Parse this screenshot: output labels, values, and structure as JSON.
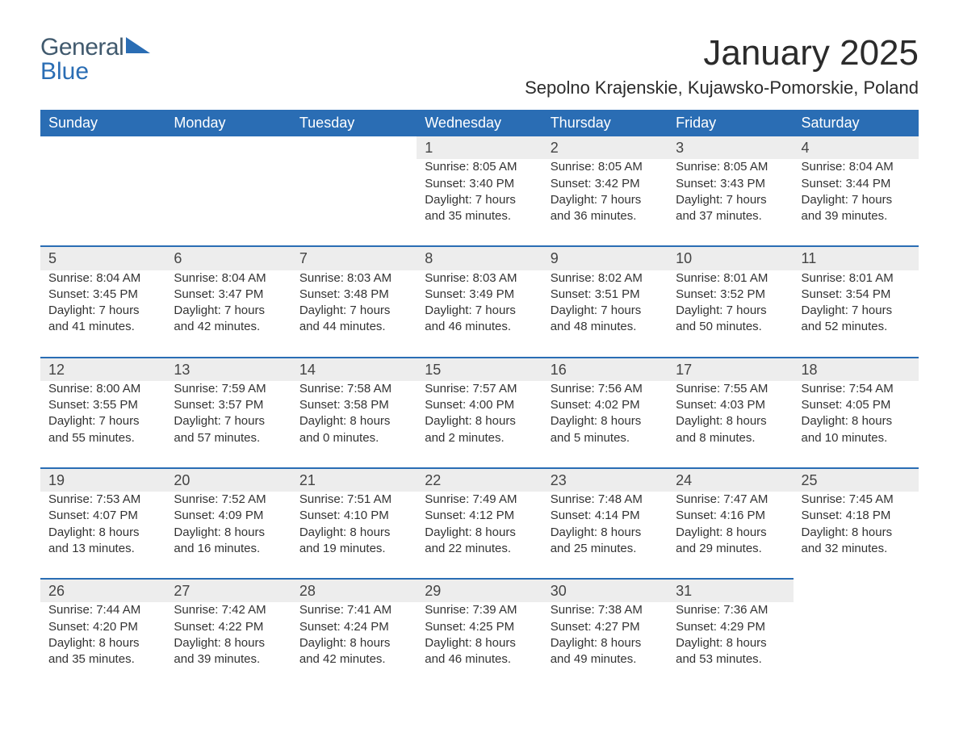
{
  "brand": {
    "word1": "General",
    "word2": "Blue"
  },
  "title": "January 2025",
  "subtitle": "Sepolno Krajenskie, Kujawsko-Pomorskie, Poland",
  "colors": {
    "header_bg": "#2a6db4",
    "header_text": "#ffffff",
    "daynum_bg": "#ededed",
    "row_divider": "#2a6db4",
    "body_text": "#333333",
    "page_bg": "#ffffff"
  },
  "fonts": {
    "title_size_pt": 33,
    "subtitle_size_pt": 17,
    "header_size_pt": 14,
    "cell_size_pt": 11
  },
  "weekdays": [
    "Sunday",
    "Monday",
    "Tuesday",
    "Wednesday",
    "Thursday",
    "Friday",
    "Saturday"
  ],
  "weeks": [
    [
      null,
      null,
      null,
      {
        "n": "1",
        "sr": "Sunrise: 8:05 AM",
        "ss": "Sunset: 3:40 PM",
        "d1": "Daylight: 7 hours",
        "d2": "and 35 minutes."
      },
      {
        "n": "2",
        "sr": "Sunrise: 8:05 AM",
        "ss": "Sunset: 3:42 PM",
        "d1": "Daylight: 7 hours",
        "d2": "and 36 minutes."
      },
      {
        "n": "3",
        "sr": "Sunrise: 8:05 AM",
        "ss": "Sunset: 3:43 PM",
        "d1": "Daylight: 7 hours",
        "d2": "and 37 minutes."
      },
      {
        "n": "4",
        "sr": "Sunrise: 8:04 AM",
        "ss": "Sunset: 3:44 PM",
        "d1": "Daylight: 7 hours",
        "d2": "and 39 minutes."
      }
    ],
    [
      {
        "n": "5",
        "sr": "Sunrise: 8:04 AM",
        "ss": "Sunset: 3:45 PM",
        "d1": "Daylight: 7 hours",
        "d2": "and 41 minutes."
      },
      {
        "n": "6",
        "sr": "Sunrise: 8:04 AM",
        "ss": "Sunset: 3:47 PM",
        "d1": "Daylight: 7 hours",
        "d2": "and 42 minutes."
      },
      {
        "n": "7",
        "sr": "Sunrise: 8:03 AM",
        "ss": "Sunset: 3:48 PM",
        "d1": "Daylight: 7 hours",
        "d2": "and 44 minutes."
      },
      {
        "n": "8",
        "sr": "Sunrise: 8:03 AM",
        "ss": "Sunset: 3:49 PM",
        "d1": "Daylight: 7 hours",
        "d2": "and 46 minutes."
      },
      {
        "n": "9",
        "sr": "Sunrise: 8:02 AM",
        "ss": "Sunset: 3:51 PM",
        "d1": "Daylight: 7 hours",
        "d2": "and 48 minutes."
      },
      {
        "n": "10",
        "sr": "Sunrise: 8:01 AM",
        "ss": "Sunset: 3:52 PM",
        "d1": "Daylight: 7 hours",
        "d2": "and 50 minutes."
      },
      {
        "n": "11",
        "sr": "Sunrise: 8:01 AM",
        "ss": "Sunset: 3:54 PM",
        "d1": "Daylight: 7 hours",
        "d2": "and 52 minutes."
      }
    ],
    [
      {
        "n": "12",
        "sr": "Sunrise: 8:00 AM",
        "ss": "Sunset: 3:55 PM",
        "d1": "Daylight: 7 hours",
        "d2": "and 55 minutes."
      },
      {
        "n": "13",
        "sr": "Sunrise: 7:59 AM",
        "ss": "Sunset: 3:57 PM",
        "d1": "Daylight: 7 hours",
        "d2": "and 57 minutes."
      },
      {
        "n": "14",
        "sr": "Sunrise: 7:58 AM",
        "ss": "Sunset: 3:58 PM",
        "d1": "Daylight: 8 hours",
        "d2": "and 0 minutes."
      },
      {
        "n": "15",
        "sr": "Sunrise: 7:57 AM",
        "ss": "Sunset: 4:00 PM",
        "d1": "Daylight: 8 hours",
        "d2": "and 2 minutes."
      },
      {
        "n": "16",
        "sr": "Sunrise: 7:56 AM",
        "ss": "Sunset: 4:02 PM",
        "d1": "Daylight: 8 hours",
        "d2": "and 5 minutes."
      },
      {
        "n": "17",
        "sr": "Sunrise: 7:55 AM",
        "ss": "Sunset: 4:03 PM",
        "d1": "Daylight: 8 hours",
        "d2": "and 8 minutes."
      },
      {
        "n": "18",
        "sr": "Sunrise: 7:54 AM",
        "ss": "Sunset: 4:05 PM",
        "d1": "Daylight: 8 hours",
        "d2": "and 10 minutes."
      }
    ],
    [
      {
        "n": "19",
        "sr": "Sunrise: 7:53 AM",
        "ss": "Sunset: 4:07 PM",
        "d1": "Daylight: 8 hours",
        "d2": "and 13 minutes."
      },
      {
        "n": "20",
        "sr": "Sunrise: 7:52 AM",
        "ss": "Sunset: 4:09 PM",
        "d1": "Daylight: 8 hours",
        "d2": "and 16 minutes."
      },
      {
        "n": "21",
        "sr": "Sunrise: 7:51 AM",
        "ss": "Sunset: 4:10 PM",
        "d1": "Daylight: 8 hours",
        "d2": "and 19 minutes."
      },
      {
        "n": "22",
        "sr": "Sunrise: 7:49 AM",
        "ss": "Sunset: 4:12 PM",
        "d1": "Daylight: 8 hours",
        "d2": "and 22 minutes."
      },
      {
        "n": "23",
        "sr": "Sunrise: 7:48 AM",
        "ss": "Sunset: 4:14 PM",
        "d1": "Daylight: 8 hours",
        "d2": "and 25 minutes."
      },
      {
        "n": "24",
        "sr": "Sunrise: 7:47 AM",
        "ss": "Sunset: 4:16 PM",
        "d1": "Daylight: 8 hours",
        "d2": "and 29 minutes."
      },
      {
        "n": "25",
        "sr": "Sunrise: 7:45 AM",
        "ss": "Sunset: 4:18 PM",
        "d1": "Daylight: 8 hours",
        "d2": "and 32 minutes."
      }
    ],
    [
      {
        "n": "26",
        "sr": "Sunrise: 7:44 AM",
        "ss": "Sunset: 4:20 PM",
        "d1": "Daylight: 8 hours",
        "d2": "and 35 minutes."
      },
      {
        "n": "27",
        "sr": "Sunrise: 7:42 AM",
        "ss": "Sunset: 4:22 PM",
        "d1": "Daylight: 8 hours",
        "d2": "and 39 minutes."
      },
      {
        "n": "28",
        "sr": "Sunrise: 7:41 AM",
        "ss": "Sunset: 4:24 PM",
        "d1": "Daylight: 8 hours",
        "d2": "and 42 minutes."
      },
      {
        "n": "29",
        "sr": "Sunrise: 7:39 AM",
        "ss": "Sunset: 4:25 PM",
        "d1": "Daylight: 8 hours",
        "d2": "and 46 minutes."
      },
      {
        "n": "30",
        "sr": "Sunrise: 7:38 AM",
        "ss": "Sunset: 4:27 PM",
        "d1": "Daylight: 8 hours",
        "d2": "and 49 minutes."
      },
      {
        "n": "31",
        "sr": "Sunrise: 7:36 AM",
        "ss": "Sunset: 4:29 PM",
        "d1": "Daylight: 8 hours",
        "d2": "and 53 minutes."
      },
      null
    ]
  ]
}
